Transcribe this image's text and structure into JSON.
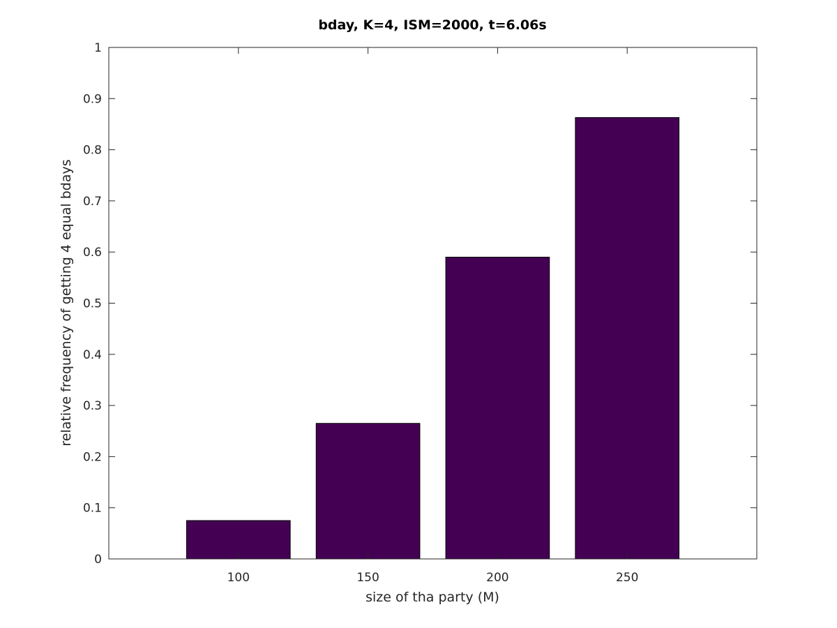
{
  "chart_data": {
    "type": "bar",
    "title": "bday, K=4, ISM=2000, t=6.06s",
    "xlabel": "size of tha party (M)",
    "ylabel": "relative frequency of getting 4 equal bdays",
    "categories": [
      "100",
      "150",
      "200",
      "250"
    ],
    "values": [
      0.075,
      0.265,
      0.59,
      0.863
    ],
    "ylim": [
      0,
      1
    ],
    "yticks": [
      "0",
      "0.1",
      "0.2",
      "0.3",
      "0.4",
      "0.5",
      "0.6",
      "0.7",
      "0.8",
      "0.9",
      "1"
    ],
    "xlim": [
      50,
      300
    ],
    "grid": false,
    "box": true,
    "bar_color": "#440154",
    "bar_edge_color": "#000000",
    "axis_color": "#262626"
  }
}
